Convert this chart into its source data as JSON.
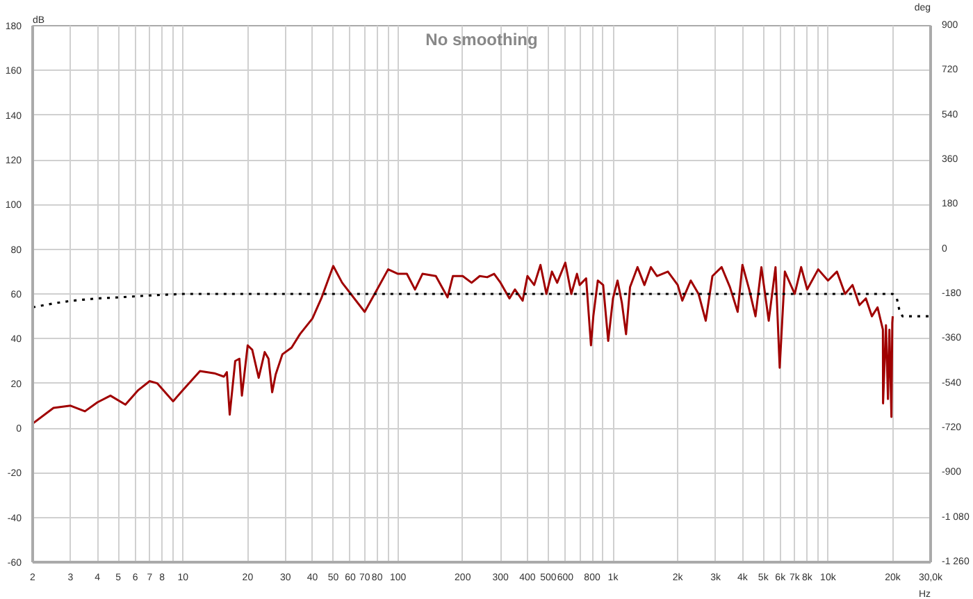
{
  "chart_data": {
    "type": "line",
    "title": "No smoothing",
    "xlabel": "Hz",
    "ylabel": "dB",
    "y2label": "deg",
    "log": "x",
    "grid": true,
    "marker": "none",
    "xlim": [
      2,
      30000
    ],
    "xticks": [
      2,
      3,
      4,
      5,
      6,
      7,
      8,
      {
        "value": 9,
        "label": null
      },
      10,
      20,
      30,
      40,
      50,
      60,
      70,
      80,
      {
        "value": 90,
        "label": null
      },
      100,
      200,
      300,
      400,
      500,
      600,
      {
        "value": 700,
        "label": null
      },
      800,
      {
        "value": 900,
        "label": null
      },
      {
        "value": 1000,
        "label": "1k"
      },
      {
        "value": 2000,
        "label": "2k"
      },
      {
        "value": 3000,
        "label": "3k"
      },
      {
        "value": 4000,
        "label": "4k"
      },
      {
        "value": 5000,
        "label": "5k"
      },
      {
        "value": 6000,
        "label": "6k"
      },
      {
        "value": 7000,
        "label": "7k"
      },
      {
        "value": 8000,
        "label": "8k"
      },
      {
        "value": 9000,
        "label": null
      },
      {
        "value": 10000,
        "label": "10k"
      },
      {
        "value": 20000,
        "label": "20k"
      },
      {
        "value": 30000,
        "label": "30,0k"
      }
    ],
    "ylim": [
      -60,
      180
    ],
    "yticks": [
      -60,
      -40,
      -20,
      0,
      20,
      40,
      60,
      80,
      100,
      120,
      140,
      160,
      180
    ],
    "y2lim": [
      -1260,
      900
    ],
    "y2ticks": [
      {
        "value": -1260,
        "label": "-1 260"
      },
      {
        "value": -1080,
        "label": "-1 080"
      },
      -900,
      -720,
      -540,
      -360,
      -180,
      0,
      180,
      360,
      540,
      720,
      900
    ],
    "series": [
      {
        "color": "#a00000",
        "line_style": "solid",
        "x": [
          2,
          2.5,
          3,
          3.5,
          4,
          4.6,
          5.4,
          6.2,
          7,
          7.6,
          9,
          10,
          12,
          14,
          15.5,
          16,
          16.5,
          17.5,
          18.3,
          18.8,
          20,
          21,
          22.5,
          24,
          25,
          26,
          27,
          29,
          32,
          35,
          40,
          44,
          50,
          55,
          70,
          80,
          90,
          100,
          110,
          120,
          130,
          150,
          170,
          180,
          200,
          220,
          240,
          260,
          280,
          300,
          330,
          350,
          380,
          400,
          430,
          460,
          490,
          520,
          550,
          600,
          640,
          680,
          700,
          750,
          790,
          810,
          850,
          900,
          950,
          1000,
          1050,
          1100,
          1150,
          1200,
          1300,
          1400,
          1500,
          1600,
          1800,
          2000,
          2100,
          2300,
          2500,
          2700,
          2900,
          3200,
          3500,
          3800,
          4000,
          4300,
          4600,
          4900,
          5300,
          5700,
          5960,
          6300,
          7000,
          7500,
          8000,
          9000,
          10000,
          11000,
          12000,
          13000,
          14000,
          15000,
          16000,
          17000,
          18000,
          18030,
          18600,
          19000,
          19300,
          19720,
          19900,
          20000
        ],
        "values": [
          2,
          9,
          10,
          7.5,
          11.5,
          14.5,
          10.5,
          17,
          21,
          20,
          12,
          17,
          25.5,
          24.5,
          23,
          25,
          6,
          30,
          31,
          14.5,
          37,
          35,
          22.5,
          34,
          31,
          16,
          24,
          33,
          36,
          42,
          49,
          58,
          72.5,
          65,
          52,
          62,
          71,
          69,
          69,
          62,
          69,
          68,
          58.5,
          68,
          68,
          65,
          68,
          67.5,
          69,
          65,
          58,
          62,
          57,
          68,
          64,
          73,
          60,
          70,
          65,
          74,
          60,
          69,
          64,
          67,
          37,
          50,
          66,
          64,
          39,
          58,
          66,
          56,
          42,
          63,
          72,
          64,
          72,
          68,
          70,
          64,
          57,
          66,
          60,
          48,
          68,
          72,
          63,
          52,
          73,
          62,
          50,
          72,
          48,
          72,
          27,
          70,
          60,
          72,
          62,
          71,
          66,
          70,
          60,
          64,
          55,
          58,
          50,
          54,
          44,
          11,
          46,
          13,
          44,
          5,
          47,
          50
        ]
      },
      {
        "color": "#000000",
        "line_style": "dotted",
        "axis": "y2",
        "x": [
          2,
          2.5,
          3,
          4,
          5,
          7,
          10,
          100,
          1000,
          10000,
          20000,
          20900,
          21400,
          22200,
          30000
        ],
        "values": [
          -234,
          -218,
          -208,
          -198,
          -194,
          -186,
          -180,
          -180,
          -180,
          -180,
          -180,
          -198,
          -240,
          -270,
          -270
        ]
      }
    ]
  }
}
